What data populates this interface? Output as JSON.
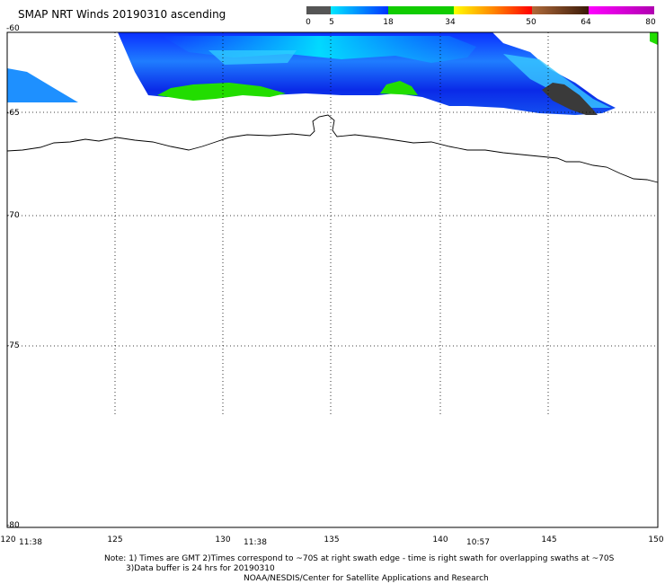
{
  "title": "SMAP NRT Winds 20190310 ascending",
  "color_scale": {
    "ticks": [
      "0",
      "5",
      "18",
      "34",
      "50",
      "64",
      "80"
    ],
    "segments": [
      {
        "from": 0,
        "to": 5,
        "color": "#444444"
      },
      {
        "from": 5,
        "to": 18,
        "color": "#1e64ff"
      },
      {
        "from": 18,
        "to": 34,
        "color": "#22cc00"
      },
      {
        "from": 34,
        "to": 50,
        "color": "#ff5500"
      },
      {
        "from": 50,
        "to": 64,
        "color": "#8b4513"
      },
      {
        "from": 64,
        "to": 80,
        "color": "#d400d4"
      }
    ]
  },
  "latitude_labels": [
    "-60",
    "-65",
    "-70",
    "-75",
    "-80"
  ],
  "longitude_labels": [
    "120",
    "125",
    "130",
    "135",
    "140",
    "145",
    "150"
  ],
  "time_labels": [
    "11:38",
    "11:38",
    "10:57"
  ],
  "notes": [
    "Note: 1) Times are GMT 2)Times correspond to ~70S at right swath edge - time is right swath for overlapping swaths at ~70S",
    "3)Data buffer is 24 hrs for 20190310",
    "NOAA/NESDIS/Center for Satellite Applications and Research"
  ]
}
